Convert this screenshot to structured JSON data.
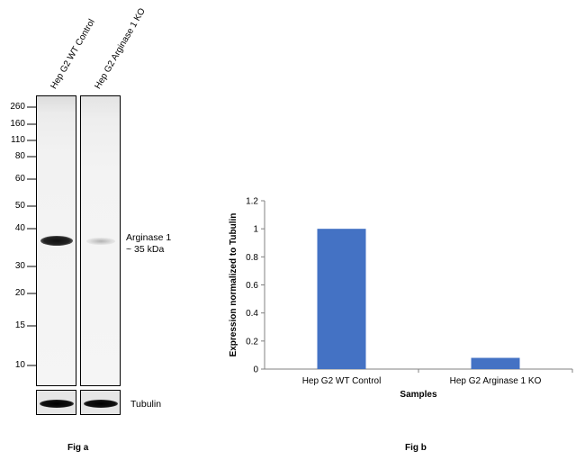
{
  "blot": {
    "lane_labels": [
      "Hep G2 WT Control",
      "Hep G2 Arginase 1 KO"
    ],
    "mw_markers": [
      "260",
      "160",
      "110",
      "80",
      "60",
      "50",
      "40",
      "30",
      "20",
      "15",
      "10"
    ],
    "band_label_line1": "Arginase 1",
    "band_label_line2": "~ 35 kDa",
    "loading_control_label": "Tubulin",
    "caption": "Fig a"
  },
  "chart_caption": "Fig b",
  "chart_data": {
    "type": "bar",
    "categories": [
      "Hep G2 WT Control",
      "Hep G2 Arginase 1 KO"
    ],
    "values": [
      1.0,
      0.08
    ],
    "title": "",
    "xlabel": "Samples",
    "ylabel": "Expression normalized to Tubulin",
    "ylim": [
      0,
      1.2
    ],
    "yticks": [
      "0",
      "0.2",
      "0.4",
      "0.6",
      "0.8",
      "1",
      "1.2"
    ],
    "bar_color": "#4472c4",
    "grid": false,
    "legend": "none"
  }
}
